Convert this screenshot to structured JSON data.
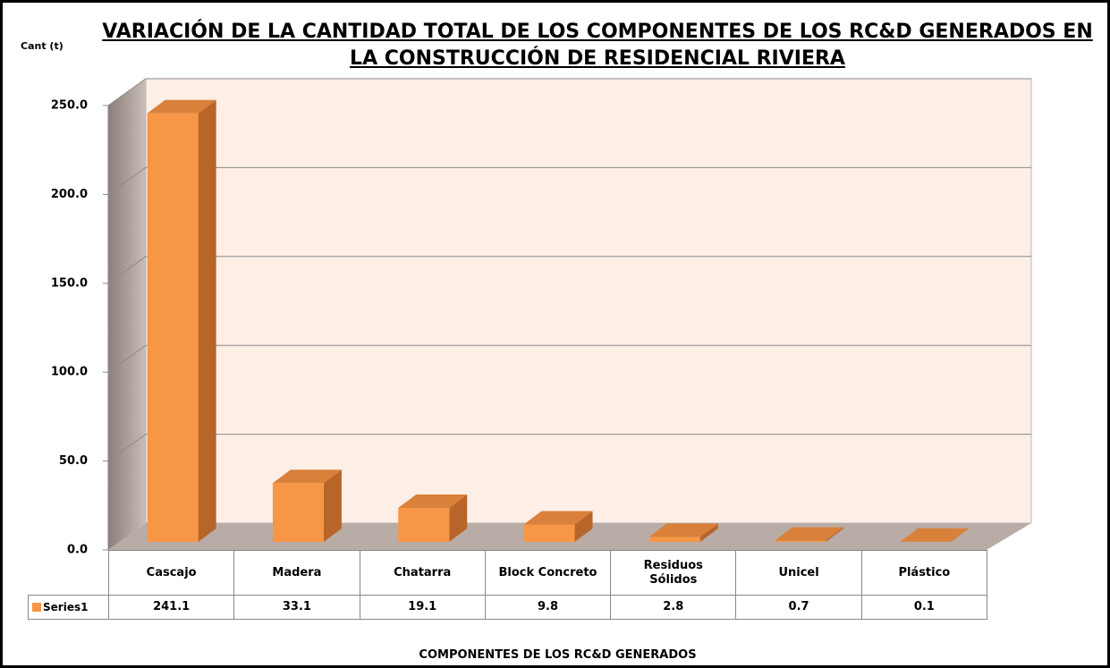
{
  "chart_data": {
    "type": "bar3d",
    "title": "VARIACIÓN DE LA CANTIDAD TOTAL DE LOS COMPONENTES DE LOS RC&D GENERADOS EN LA CONSTRUCCIÓN DE RESIDENCIAL RIVIERA",
    "y_axis_label": "Cant (t)",
    "x_axis_label": "COMPONENTES DE LOS RC&D GENERADOS",
    "categories": [
      "Cascajo",
      "Madera",
      "Chatarra",
      "Block Concreto",
      "Residuos Sólidos",
      "Unicel",
      "Plástico"
    ],
    "series": [
      {
        "name": "Series1",
        "color": "#f79646",
        "values": [
          241.1,
          33.1,
          19.1,
          9.8,
          2.8,
          0.7,
          0.1
        ]
      }
    ],
    "ylim": [
      0,
      250
    ],
    "yticks": [
      {
        "value": 0,
        "label": "0.0"
      },
      {
        "value": 50,
        "label": "50.0"
      },
      {
        "value": 100,
        "label": "100.0"
      },
      {
        "value": 150,
        "label": "150.0"
      },
      {
        "value": 200,
        "label": "200.0"
      },
      {
        "value": 250,
        "label": "250.0"
      }
    ],
    "grid": true,
    "data_table": true
  }
}
